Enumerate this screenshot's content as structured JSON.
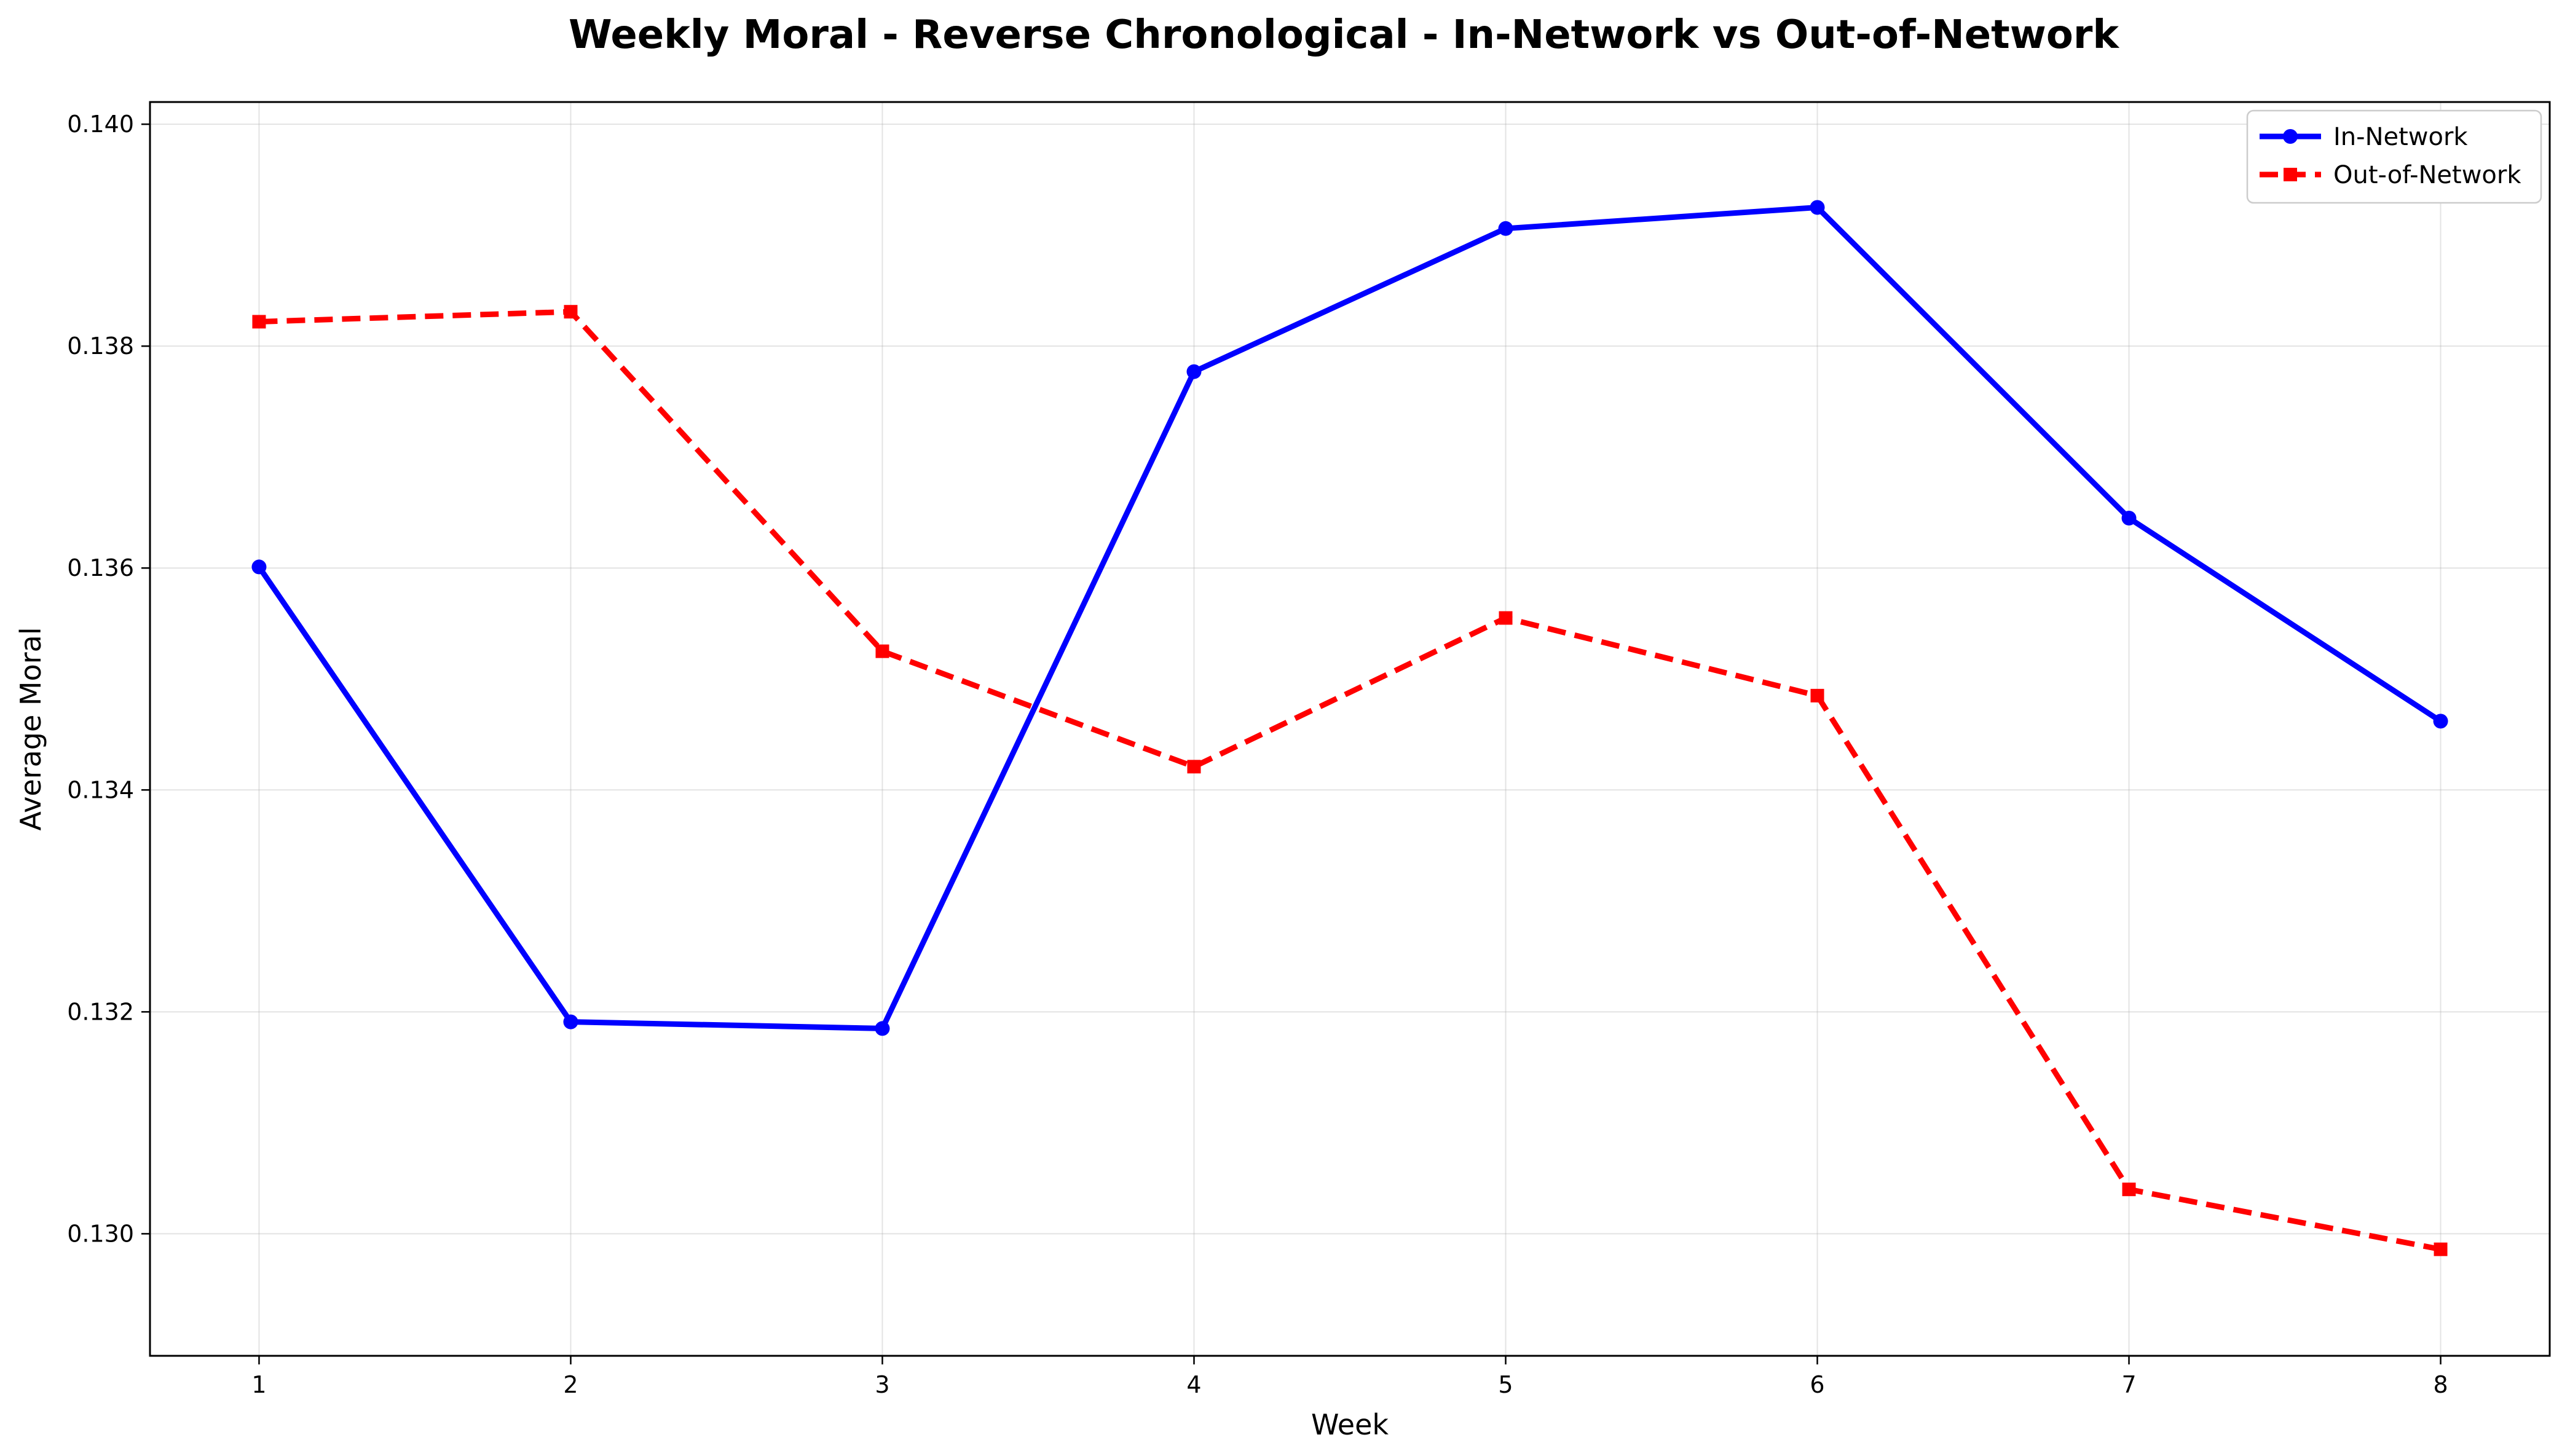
{
  "chart_data": {
    "type": "line",
    "title": "Weekly Moral - Reverse Chronological - In-Network vs Out-of-Network",
    "xlabel": "Week",
    "ylabel": "Average Moral",
    "x": [
      1,
      2,
      3,
      4,
      5,
      6,
      7,
      8
    ],
    "xticks": [
      "1",
      "2",
      "3",
      "4",
      "5",
      "6",
      "7",
      "8"
    ],
    "yticks": [
      "0.130",
      "0.132",
      "0.134",
      "0.136",
      "0.138",
      "0.140"
    ],
    "xlim": [
      0.65,
      8.35
    ],
    "ylim": [
      0.1289,
      0.1402
    ],
    "grid": true,
    "legend_position": "top-right",
    "series": [
      {
        "name": "In-Network",
        "color": "#0000ff",
        "line_style": "solid",
        "marker": "circle",
        "values": [
          0.13601,
          0.13191,
          0.13185,
          0.13777,
          0.13906,
          0.13925,
          0.13645,
          0.13462
        ]
      },
      {
        "name": "Out-of-Network",
        "color": "#ff0000",
        "line_style": "dashed",
        "marker": "square",
        "values": [
          0.13822,
          0.13831,
          0.13525,
          0.13421,
          0.13555,
          0.13485,
          0.1304,
          0.12986
        ]
      }
    ]
  }
}
